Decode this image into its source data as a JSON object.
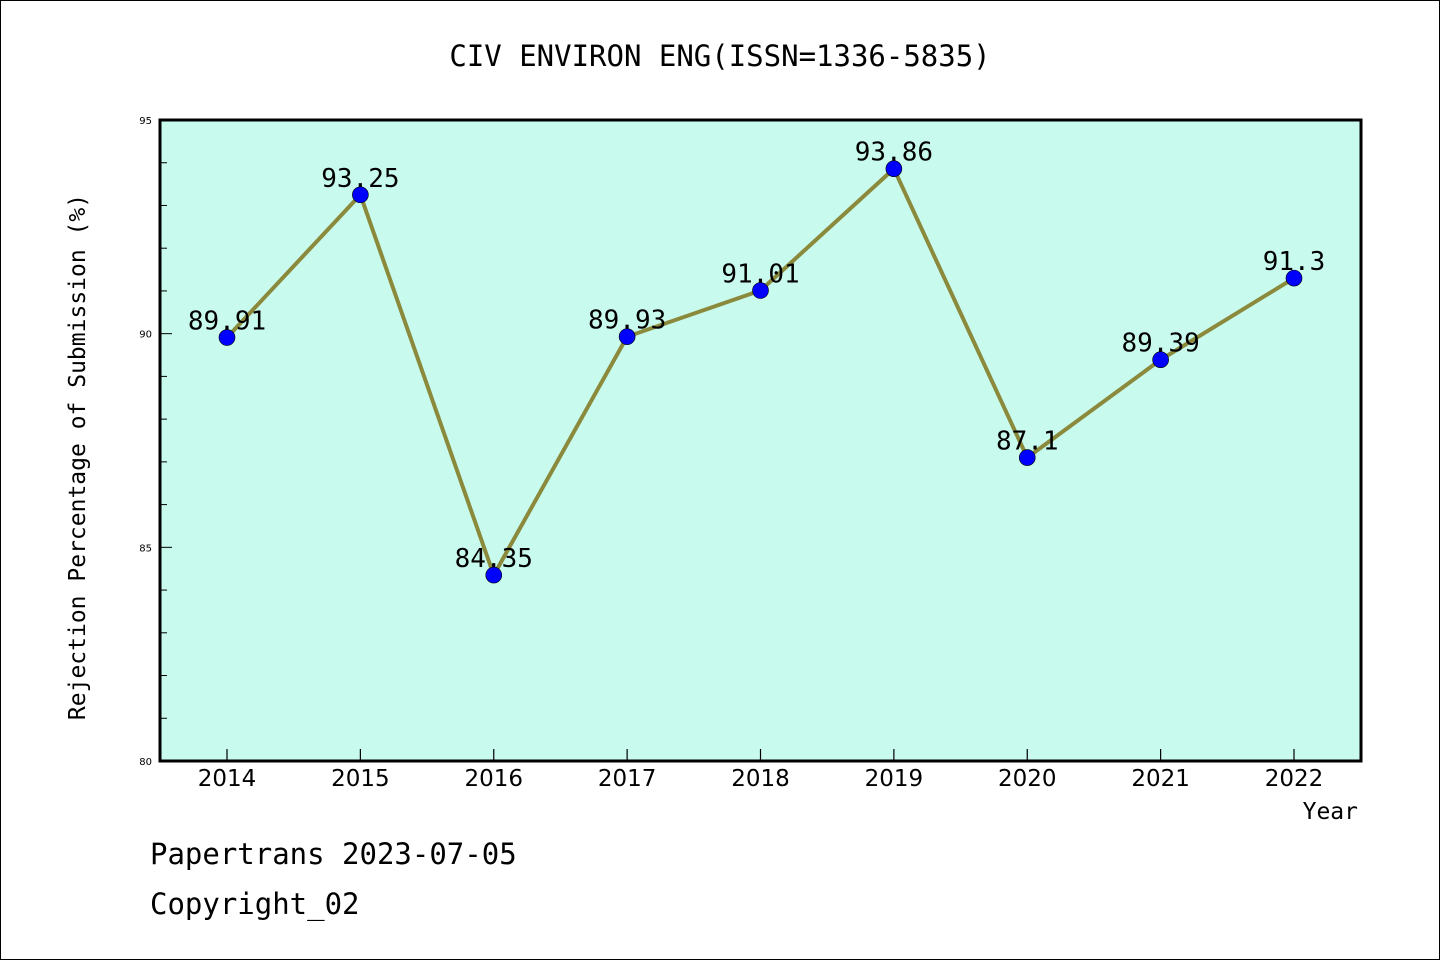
{
  "chart_data": {
    "type": "line",
    "title": "CIV ENVIRON ENG(ISSN=1336-5835)",
    "xlabel": "Year",
    "ylabel": "Rejection Percentage of Submission (%)",
    "categories": [
      "2014",
      "2015",
      "2016",
      "2017",
      "2018",
      "2019",
      "2020",
      "2021",
      "2022"
    ],
    "series": [
      {
        "values": [
          89.91,
          93.25,
          84.35,
          89.93,
          91.01,
          93.86,
          87.1,
          89.39,
          91.3
        ]
      }
    ],
    "data_labels": [
      "89.91",
      "93.25",
      "84.35",
      "89.93",
      "91.01",
      "93.86",
      "87.1",
      "89.39",
      "91.3"
    ],
    "ylim": [
      80,
      95
    ],
    "yticks": [
      "80",
      "85",
      "90",
      "95"
    ],
    "grid": false,
    "colors": {
      "plot_background": "#c8fbee",
      "line": "#8b8a3c",
      "marker": "#0000ff"
    }
  },
  "footer": {
    "source_line": "Papertrans 2023-07-05",
    "copyright": "Copyright_02"
  }
}
